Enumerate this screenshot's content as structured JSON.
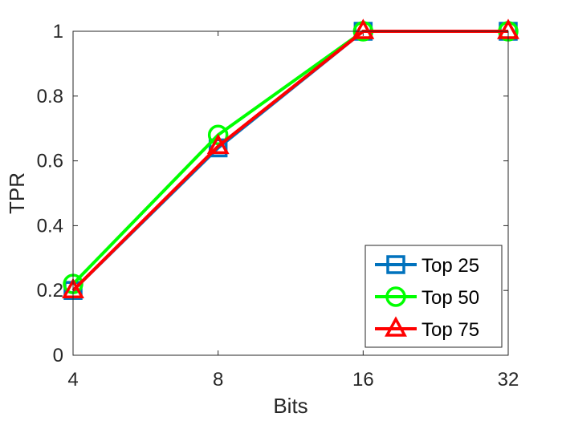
{
  "chart_data": {
    "type": "line",
    "xlabel": "Bits",
    "ylabel": "TPR",
    "x": [
      4,
      8,
      16,
      32
    ],
    "x_tick_labels": [
      "4",
      "8",
      "16",
      "32"
    ],
    "x_scale": "log2",
    "xlim": [
      4,
      32
    ],
    "ylim": [
      0,
      1
    ],
    "y_ticks": [
      0,
      0.2,
      0.4,
      0.6,
      0.8,
      1
    ],
    "y_tick_labels": [
      "0",
      "0.2",
      "0.4",
      "0.6",
      "0.8",
      "1"
    ],
    "grid": false,
    "legend_position": "bottom-right",
    "series": [
      {
        "name": "Top 25",
        "values": [
          0.2,
          0.64,
          1,
          1
        ],
        "color": "#0072BD",
        "marker": "square"
      },
      {
        "name": "Top 50",
        "values": [
          0.22,
          0.68,
          1,
          1
        ],
        "color": "#00FF00",
        "marker": "circle"
      },
      {
        "name": "Top 75",
        "values": [
          0.2,
          0.645,
          1,
          1
        ],
        "color": "#FF0000",
        "marker": "triangle"
      }
    ]
  }
}
